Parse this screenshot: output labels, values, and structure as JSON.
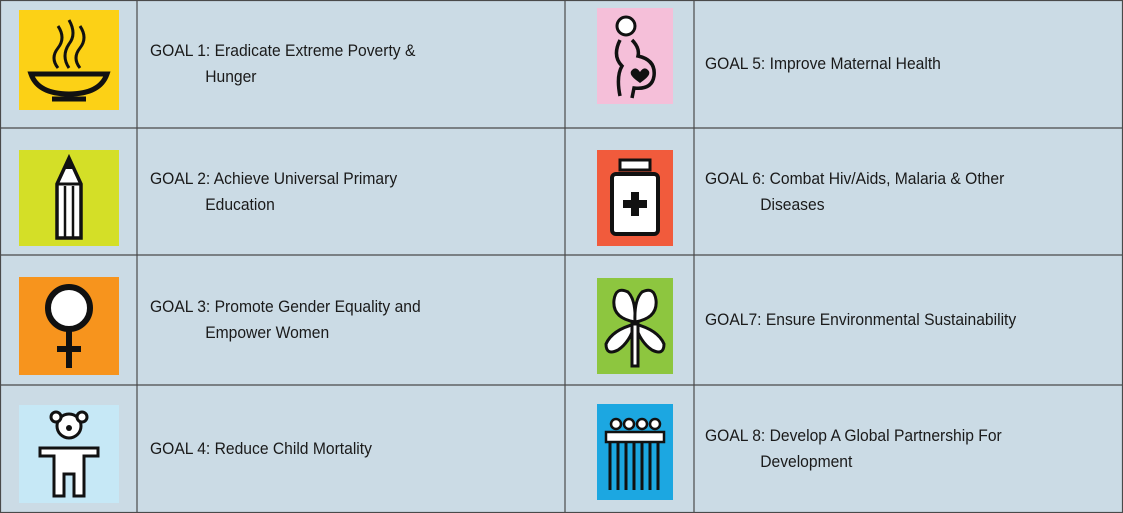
{
  "goals": [
    {
      "lines": [
        "GOAL 1: Eradicate Extreme Poverty &",
        "Hunger"
      ]
    },
    {
      "lines": [
        "GOAL 2: Achieve Universal Primary",
        "Education"
      ]
    },
    {
      "lines": [
        "GOAL 3: Promote Gender Equality and",
        "Empower Women"
      ]
    },
    {
      "lines": [
        "GOAL 4: Reduce Child Mortality"
      ]
    },
    {
      "lines": [
        "GOAL 5: Improve Maternal Health"
      ]
    },
    {
      "lines": [
        "GOAL 6: Combat Hiv/Aids, Malaria & Other",
        "Diseases"
      ]
    },
    {
      "lines": [
        "GOAL7: Ensure Environmental Sustainability"
      ]
    },
    {
      "lines": [
        "GOAL 8: Develop A Global Partnership For",
        "Development"
      ]
    }
  ]
}
